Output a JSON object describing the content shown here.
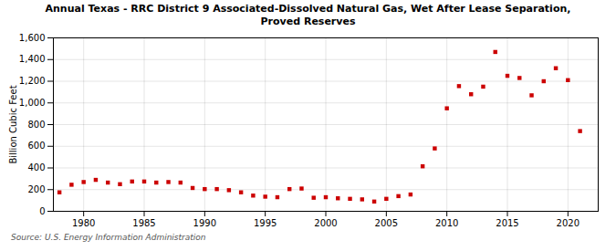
{
  "chart_data": {
    "type": "scatter",
    "title": "Annual Texas - RRC District 9 Associated-Dissolved Natural Gas, Wet After Lease Separation,\nProved Reserves",
    "ylabel": "Billion Cubic Feet",
    "source": "Source: U.S. Energy Information Administration",
    "x": [
      1978,
      1979,
      1980,
      1981,
      1982,
      1983,
      1984,
      1985,
      1986,
      1987,
      1988,
      1989,
      1990,
      1991,
      1992,
      1993,
      1994,
      1995,
      1996,
      1997,
      1998,
      1999,
      2000,
      2001,
      2002,
      2003,
      2004,
      2005,
      2006,
      2007,
      2008,
      2009,
      2010,
      2011,
      2012,
      2013,
      2014,
      2015,
      2016,
      2017,
      2018,
      2019,
      2020,
      2021
    ],
    "values": [
      175,
      245,
      270,
      290,
      265,
      250,
      275,
      275,
      265,
      270,
      265,
      215,
      205,
      205,
      195,
      175,
      145,
      135,
      130,
      205,
      210,
      125,
      130,
      120,
      115,
      110,
      90,
      115,
      140,
      155,
      415,
      580,
      950,
      1155,
      1080,
      1150,
      1470,
      1250,
      1230,
      1070,
      1200,
      1320,
      1210,
      740
    ],
    "color": "#cc0000",
    "marker": "square",
    "xlim": [
      1977.5,
      2022.5
    ],
    "ylim": [
      0,
      1600
    ],
    "xticks": [
      1980,
      1985,
      1990,
      1995,
      2000,
      2005,
      2010,
      2015,
      2020
    ],
    "yticks": [
      0,
      200,
      400,
      600,
      800,
      {
        "value": 1000,
        "label": "1,000"
      },
      {
        "value": 1200,
        "label": "1,200"
      },
      {
        "value": 1400,
        "label": "1,400"
      },
      {
        "value": 1600,
        "label": "1,600"
      }
    ],
    "grid": true
  }
}
